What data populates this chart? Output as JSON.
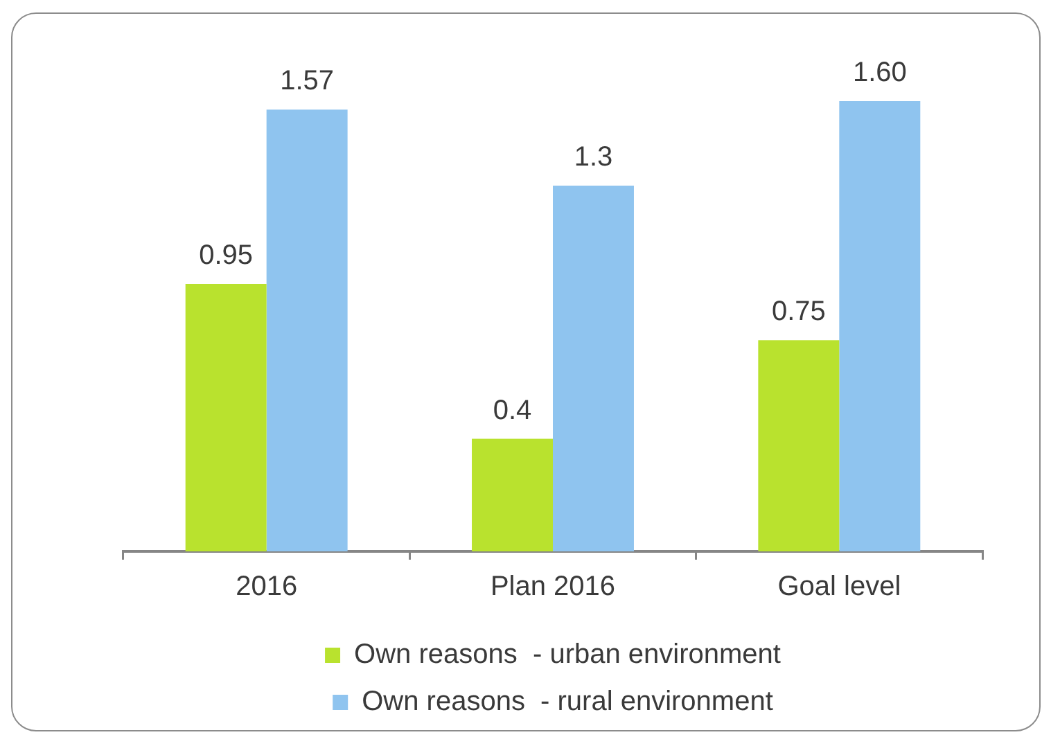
{
  "chart_data": {
    "type": "bar",
    "categories": [
      "2016",
      "Plan 2016",
      "Goal level"
    ],
    "series": [
      {
        "name": "Own reasons  - urban environment",
        "color": "#b9e22e",
        "values": [
          0.95,
          0.4,
          0.75
        ],
        "value_labels": [
          "0.95",
          "0.4",
          "0.75"
        ]
      },
      {
        "name": "Own reasons  - rural environment",
        "color": "#8fc4ef",
        "values": [
          1.57,
          1.3,
          1.6
        ],
        "value_labels": [
          "1.57",
          "1.3",
          "1.60"
        ]
      }
    ],
    "legend": "bottom",
    "tick_labels": "x"
  }
}
